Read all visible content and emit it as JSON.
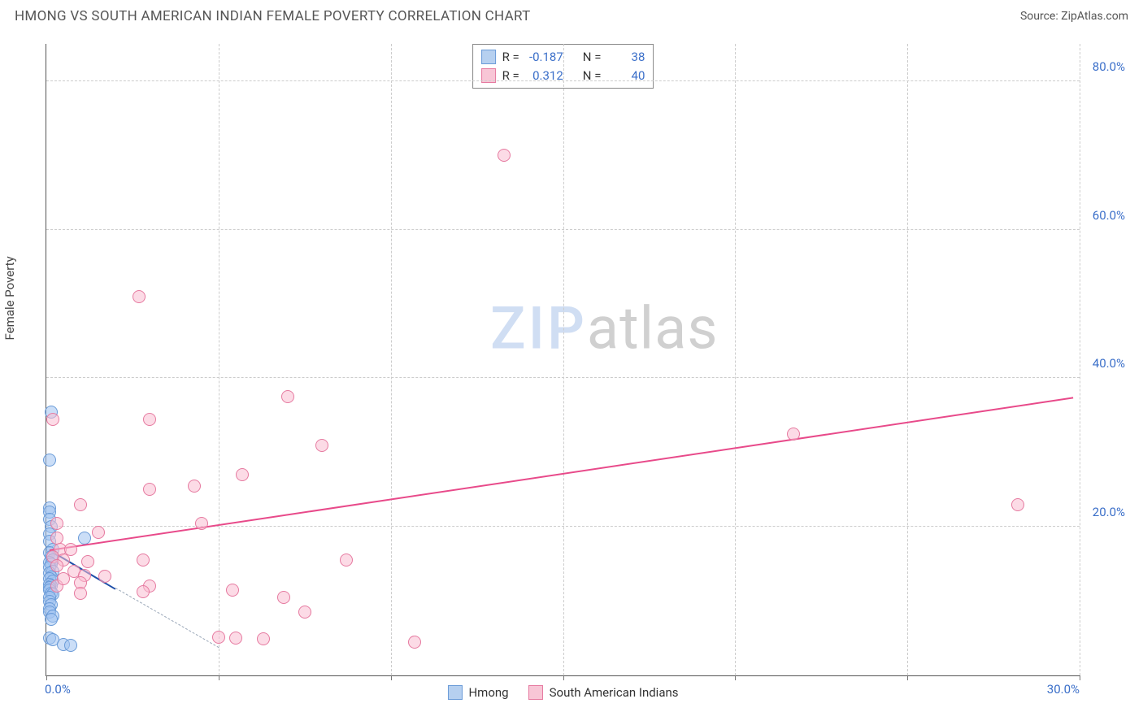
{
  "header": {
    "title": "HMONG VS SOUTH AMERICAN INDIAN FEMALE POVERTY CORRELATION CHART",
    "source": "Source: ZipAtlas.com"
  },
  "watermark": {
    "part1": "ZIP",
    "part2": "atlas"
  },
  "y_axis": {
    "label": "Female Poverty"
  },
  "chart": {
    "type": "scatter",
    "xlim": [
      0,
      30
    ],
    "ylim": [
      0,
      85
    ],
    "xtick_positions": [
      0,
      5,
      10,
      15,
      20,
      25,
      30
    ],
    "xtick_labels": {
      "0": "0.0%",
      "30": "30.0%"
    },
    "ytick_positions": [
      20,
      40,
      60,
      80
    ],
    "ytick_labels": {
      "20": "20.0%",
      "40": "40.0%",
      "60": "60.0%",
      "80": "80.0%"
    },
    "grid_color": "#cccccc",
    "background_color": "#ffffff",
    "point_radius": 8,
    "point_stroke_width": 1.2,
    "series": [
      {
        "name": "Hmong",
        "label": "Hmong",
        "fill": "rgba(160,195,240,0.55)",
        "stroke": "#6a9bd8",
        "swatch_fill": "#b6d0f0",
        "swatch_border": "#6a9bd8",
        "stats": {
          "R": "-0.187",
          "N": "38"
        },
        "trend": {
          "solid": {
            "x1": 0.1,
            "y1": 17.0,
            "x2": 2.0,
            "y2": 11.8,
            "color": "#1f4fa8"
          },
          "dashed": {
            "x1": 2.0,
            "y1": 11.8,
            "x2": 5.0,
            "y2": 3.8,
            "color": "#9aa7b8"
          }
        },
        "points": [
          [
            0.15,
            35.5
          ],
          [
            0.1,
            29.0
          ],
          [
            0.1,
            22.5
          ],
          [
            0.1,
            22.0
          ],
          [
            0.1,
            21.0
          ],
          [
            0.15,
            20.0
          ],
          [
            0.1,
            19.0
          ],
          [
            0.1,
            18.0
          ],
          [
            0.2,
            17.0
          ],
          [
            0.1,
            16.5
          ],
          [
            0.15,
            16.0
          ],
          [
            0.2,
            15.5
          ],
          [
            0.1,
            15.2
          ],
          [
            0.15,
            15.0
          ],
          [
            0.1,
            14.5
          ],
          [
            0.2,
            14.0
          ],
          [
            0.1,
            13.8
          ],
          [
            0.15,
            13.2
          ],
          [
            0.1,
            13.0
          ],
          [
            0.2,
            12.7
          ],
          [
            0.1,
            12.3
          ],
          [
            0.15,
            12.0
          ],
          [
            0.1,
            11.8
          ],
          [
            0.1,
            11.5
          ],
          [
            0.15,
            11.0
          ],
          [
            0.2,
            10.9
          ],
          [
            0.1,
            10.5
          ],
          [
            0.1,
            10.0
          ],
          [
            0.15,
            9.5
          ],
          [
            0.1,
            9.0
          ],
          [
            0.1,
            8.5
          ],
          [
            0.2,
            8.0
          ],
          [
            0.15,
            7.5
          ],
          [
            0.1,
            5.0
          ],
          [
            0.18,
            4.8
          ],
          [
            1.1,
            18.5
          ],
          [
            0.5,
            4.2
          ],
          [
            0.7,
            4.0
          ]
        ]
      },
      {
        "name": "South American Indians",
        "label": "South American Indians",
        "fill": "rgba(250,190,210,0.55)",
        "stroke": "#e67aa0",
        "swatch_fill": "#f8c6d6",
        "swatch_border": "#e67aa0",
        "stats": {
          "R": "0.312",
          "N": "40"
        },
        "trend": {
          "solid": {
            "x1": 0.1,
            "y1": 17.0,
            "x2": 29.8,
            "y2": 37.5,
            "color": "#e84a8a"
          },
          "dashed": null
        },
        "points": [
          [
            13.3,
            70.0
          ],
          [
            2.7,
            51.0
          ],
          [
            0.2,
            34.5
          ],
          [
            3.0,
            34.5
          ],
          [
            7.0,
            37.5
          ],
          [
            21.7,
            32.5
          ],
          [
            28.2,
            23.0
          ],
          [
            8.0,
            31.0
          ],
          [
            5.7,
            27.0
          ],
          [
            4.3,
            25.5
          ],
          [
            3.0,
            25.0
          ],
          [
            1.0,
            23.0
          ],
          [
            0.3,
            20.5
          ],
          [
            4.5,
            20.5
          ],
          [
            1.5,
            19.3
          ],
          [
            0.3,
            18.5
          ],
          [
            2.8,
            15.5
          ],
          [
            0.4,
            17.0
          ],
          [
            0.7,
            17.0
          ],
          [
            0.2,
            16.0
          ],
          [
            0.5,
            15.5
          ],
          [
            1.2,
            15.3
          ],
          [
            8.7,
            15.5
          ],
          [
            0.8,
            14.0
          ],
          [
            1.1,
            13.5
          ],
          [
            1.7,
            13.3
          ],
          [
            1.0,
            12.5
          ],
          [
            3.0,
            12.0
          ],
          [
            0.3,
            12.0
          ],
          [
            5.4,
            11.5
          ],
          [
            2.8,
            11.3
          ],
          [
            6.9,
            10.5
          ],
          [
            5.0,
            5.1
          ],
          [
            5.5,
            5.0
          ],
          [
            6.3,
            4.9
          ],
          [
            10.7,
            4.5
          ],
          [
            7.5,
            8.5
          ],
          [
            1.0,
            11.0
          ],
          [
            0.5,
            13.0
          ],
          [
            0.3,
            14.8
          ]
        ]
      }
    ]
  },
  "stats_legend": {
    "r_label": "R =",
    "n_label": "N ="
  },
  "bottom_legend": {
    "items": [
      "Hmong",
      "South American Indians"
    ]
  }
}
